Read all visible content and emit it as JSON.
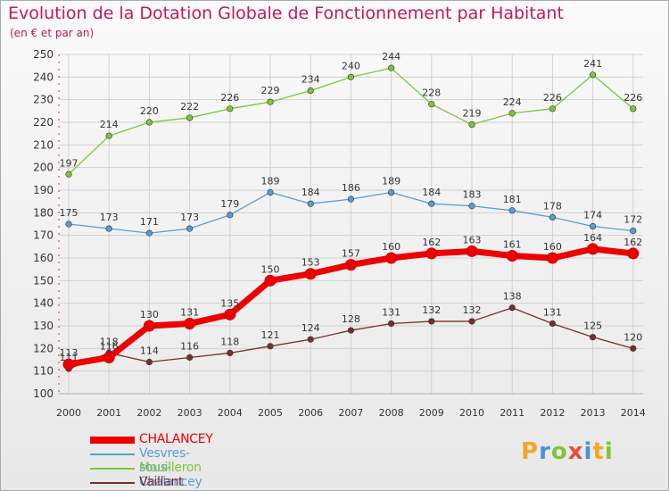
{
  "title": "Evolution de la Dotation Globale de Fonctionnement par Habitant",
  "subtitle": "(en € et par an)",
  "logo": {
    "letters": [
      "P",
      "r",
      "o",
      "x",
      "i",
      "t",
      "i"
    ],
    "colors": [
      "#f5a623",
      "#4a90d9",
      "#7ec636",
      "#e74c3c",
      "#4a90d9",
      "#f5a623",
      "#7ec636"
    ]
  },
  "chart_data": {
    "type": "line",
    "title": "Evolution de la Dotation Globale de Fonctionnement par Habitant",
    "subtitle": "(en € et par an)",
    "x": [
      "2000",
      "2001",
      "2002",
      "2003",
      "2004",
      "2005",
      "2006",
      "2007",
      "2008",
      "2009",
      "2010",
      "2011",
      "2012",
      "2013",
      "2014"
    ],
    "ylim": [
      100,
      250
    ],
    "yticks": [
      100,
      110,
      120,
      130,
      140,
      150,
      160,
      170,
      180,
      190,
      200,
      210,
      220,
      230,
      240,
      250
    ],
    "grid": true,
    "legend_position": "bottom-left",
    "series": [
      {
        "name": "CHALANCEY",
        "color": "#ee0000",
        "values": [
          113,
          116,
          130,
          131,
          135,
          150,
          153,
          157,
          160,
          162,
          163,
          161,
          160,
          164,
          162
        ]
      },
      {
        "name": "Vesvres-sous-Chalancey",
        "color": "#5b9bd5",
        "values": [
          175,
          173,
          171,
          173,
          179,
          189,
          184,
          186,
          189,
          184,
          183,
          181,
          178,
          174,
          172
        ]
      },
      {
        "name": "Mouilleron",
        "color": "#7ec636",
        "values": [
          197,
          214,
          220,
          222,
          226,
          229,
          234,
          240,
          244,
          228,
          219,
          224,
          226,
          241,
          226
        ]
      },
      {
        "name": "Vaillant",
        "color": "#7b2c2c",
        "values": [
          111,
          118,
          114,
          116,
          118,
          121,
          124,
          128,
          131,
          132,
          132,
          138,
          131,
          125,
          120
        ]
      }
    ]
  }
}
